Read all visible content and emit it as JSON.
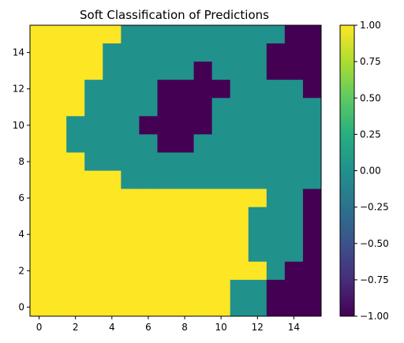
{
  "chart_data": {
    "type": "heatmap",
    "title": "Soft Classification of Predictions",
    "xlabel": "",
    "ylabel": "",
    "xlim": [
      -0.5,
      15.5
    ],
    "ylim": [
      -0.5,
      15.5
    ],
    "origin": "lower",
    "x_ticks": [
      0,
      2,
      4,
      6,
      8,
      10,
      12,
      14
    ],
    "y_ticks": [
      0,
      2,
      4,
      6,
      8,
      10,
      12,
      14
    ],
    "colormap": "viridis",
    "colors": {
      "-1": "#440154",
      "0": "#21918c",
      "1": "#fde725"
    },
    "colorbar": {
      "range": [
        -1.0,
        1.0
      ],
      "ticks": [
        "1.00",
        "0.75",
        "0.50",
        "0.25",
        "0.00",
        "−0.25",
        "−0.50",
        "−0.75",
        "−1.00"
      ],
      "tick_values": [
        1.0,
        0.75,
        0.5,
        0.25,
        0.0,
        -0.25,
        -0.5,
        -0.75,
        -1.0
      ]
    },
    "grid": false,
    "rows_top_to_bottom": [
      [
        1,
        1,
        1,
        1,
        1,
        0,
        0,
        0,
        0,
        0,
        0,
        0,
        0,
        0,
        -1,
        -1
      ],
      [
        1,
        1,
        1,
        1,
        0,
        0,
        0,
        0,
        0,
        0,
        0,
        0,
        0,
        -1,
        -1,
        -1
      ],
      [
        1,
        1,
        1,
        1,
        0,
        0,
        0,
        0,
        0,
        -1,
        0,
        0,
        0,
        -1,
        -1,
        -1
      ],
      [
        1,
        1,
        1,
        0,
        0,
        0,
        0,
        -1,
        -1,
        -1,
        -1,
        0,
        0,
        0,
        0,
        -1
      ],
      [
        1,
        1,
        1,
        0,
        0,
        0,
        0,
        -1,
        -1,
        -1,
        0,
        0,
        0,
        0,
        0,
        0
      ],
      [
        1,
        1,
        0,
        0,
        0,
        0,
        -1,
        -1,
        -1,
        -1,
        0,
        0,
        0,
        0,
        0,
        0
      ],
      [
        1,
        1,
        0,
        0,
        0,
        0,
        0,
        -1,
        -1,
        0,
        0,
        0,
        0,
        0,
        0,
        0
      ],
      [
        1,
        1,
        1,
        0,
        0,
        0,
        0,
        0,
        0,
        0,
        0,
        0,
        0,
        0,
        0,
        0
      ],
      [
        1,
        1,
        1,
        1,
        1,
        0,
        0,
        0,
        0,
        0,
        0,
        0,
        0,
        0,
        0,
        0
      ],
      [
        1,
        1,
        1,
        1,
        1,
        1,
        1,
        1,
        1,
        1,
        1,
        1,
        1,
        0,
        0,
        -1
      ],
      [
        1,
        1,
        1,
        1,
        1,
        1,
        1,
        1,
        1,
        1,
        1,
        1,
        0,
        0,
        0,
        -1
      ],
      [
        1,
        1,
        1,
        1,
        1,
        1,
        1,
        1,
        1,
        1,
        1,
        1,
        0,
        0,
        0,
        -1
      ],
      [
        1,
        1,
        1,
        1,
        1,
        1,
        1,
        1,
        1,
        1,
        1,
        1,
        0,
        0,
        0,
        -1
      ],
      [
        1,
        1,
        1,
        1,
        1,
        1,
        1,
        1,
        1,
        1,
        1,
        1,
        1,
        0,
        -1,
        -1
      ],
      [
        1,
        1,
        1,
        1,
        1,
        1,
        1,
        1,
        1,
        1,
        1,
        0,
        0,
        -1,
        -1,
        -1
      ],
      [
        1,
        1,
        1,
        1,
        1,
        1,
        1,
        1,
        1,
        1,
        1,
        0,
        0,
        -1,
        -1,
        -1
      ]
    ]
  }
}
